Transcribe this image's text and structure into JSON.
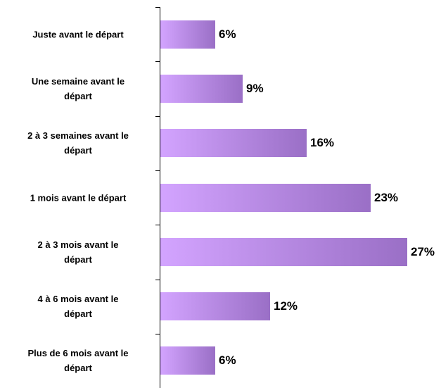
{
  "chart_data": {
    "type": "barh",
    "categories": [
      "Juste avant le départ",
      "Une semaine avant le\ndépart",
      "2 à 3 semaines avant le\ndépart",
      "1 mois avant le départ",
      "2 à 3 mois avant le\ndépart",
      "4 à 6 mois avant le\ndépart",
      "Plus de 6 mois avant le\ndépart"
    ],
    "values": [
      6,
      9,
      16,
      23,
      27,
      12,
      6
    ],
    "value_labels": [
      "6%",
      "9%",
      "16%",
      "23%",
      "27%",
      "12%",
      "6%"
    ],
    "gradient": [
      "#d3a4ff",
      "#9a6fc6"
    ]
  }
}
